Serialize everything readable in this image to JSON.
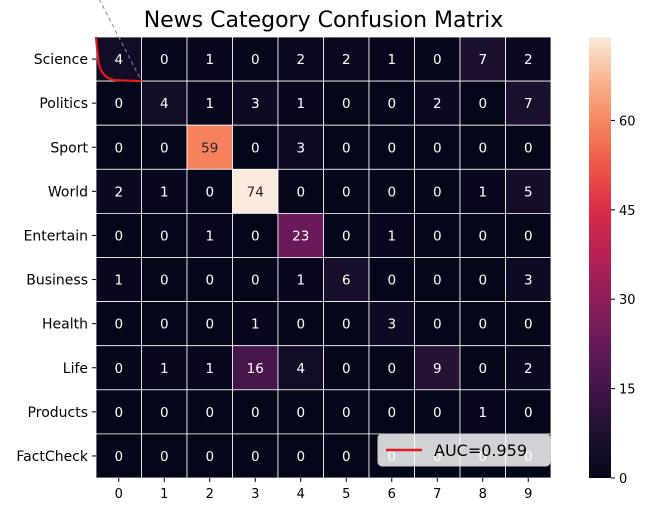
{
  "chart_data": {
    "type": "heatmap",
    "title": "News Category Confusion Matrix",
    "xlabel": "",
    "ylabel": "",
    "row_labels": [
      "Science",
      "Politics",
      "Sport",
      "World",
      "Entertain",
      "Business",
      "Health",
      "Life",
      "Products",
      "FactCheck"
    ],
    "col_labels": [
      "0",
      "1",
      "2",
      "3",
      "4",
      "5",
      "6",
      "7",
      "8",
      "9"
    ],
    "values": [
      [
        4,
        0,
        1,
        0,
        2,
        2,
        1,
        0,
        7,
        2
      ],
      [
        0,
        4,
        1,
        3,
        1,
        0,
        0,
        2,
        0,
        7
      ],
      [
        0,
        0,
        59,
        0,
        3,
        0,
        0,
        0,
        0,
        0
      ],
      [
        2,
        1,
        0,
        74,
        0,
        0,
        0,
        0,
        1,
        5
      ],
      [
        0,
        0,
        1,
        0,
        23,
        0,
        1,
        0,
        0,
        0
      ],
      [
        1,
        0,
        0,
        0,
        1,
        6,
        0,
        0,
        0,
        3
      ],
      [
        0,
        0,
        0,
        1,
        0,
        0,
        3,
        0,
        0,
        0
      ],
      [
        0,
        1,
        1,
        16,
        4,
        0,
        0,
        9,
        0,
        2
      ],
      [
        0,
        0,
        0,
        0,
        0,
        0,
        0,
        0,
        1,
        0
      ],
      [
        0,
        0,
        0,
        0,
        0,
        0,
        0,
        0,
        0,
        0
      ]
    ],
    "colormap": "rocket",
    "colorbar": {
      "ticks": [
        0,
        15,
        30,
        45,
        60
      ],
      "range": [
        0,
        74
      ]
    },
    "inset_roc": {
      "curve": [
        [
          0.0,
          1.0
        ],
        [
          0.02,
          0.35
        ],
        [
          0.05,
          0.12
        ],
        [
          0.12,
          0.04
        ],
        [
          0.3,
          0.0
        ],
        [
          1.0,
          0.0
        ]
      ],
      "diagonal": [
        [
          0.0,
          1.0
        ],
        [
          1.0,
          0.0
        ]
      ],
      "legend_label": "AUC=0.959",
      "legend_position": "bottom-right",
      "line_color": "#e41a1c"
    },
    "grid": false,
    "cell_borders": true
  }
}
